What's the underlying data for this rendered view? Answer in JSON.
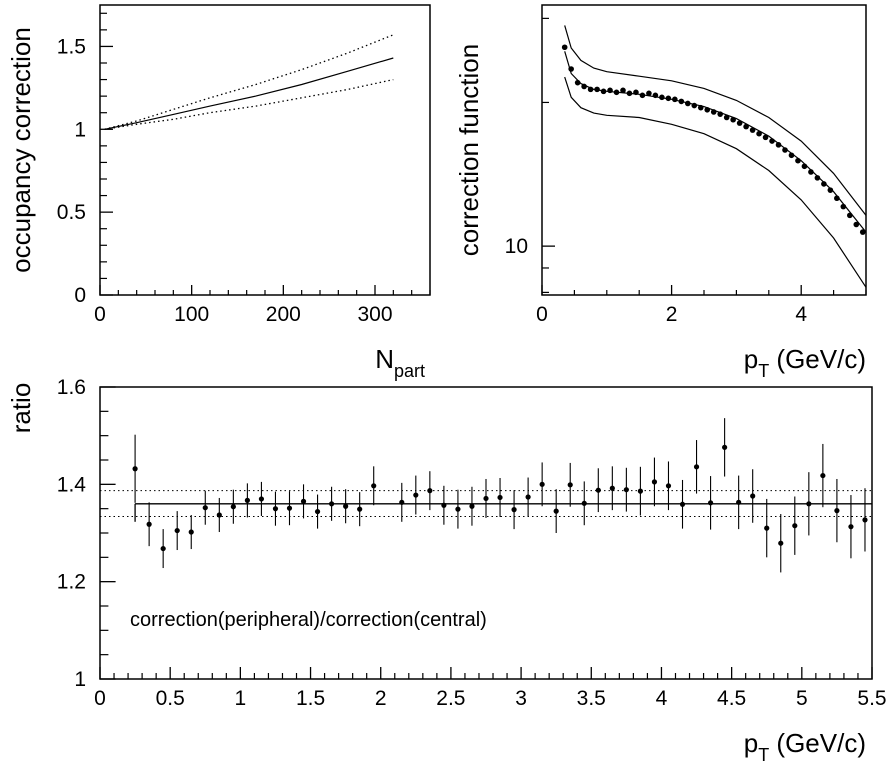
{
  "chart_data": [
    {
      "type": "line",
      "ylabel": "occupancy correction",
      "xlabel": "N",
      "xlabel_sub": "part",
      "xlim": [
        0,
        360
      ],
      "ylim": [
        0,
        1.75
      ],
      "xticks": [
        0,
        100,
        200,
        300
      ],
      "xtick_labels": [
        "0",
        "100",
        "200",
        "300"
      ],
      "yticks": [
        0,
        0.5,
        1,
        1.5
      ],
      "ytick_labels": [
        "0",
        "0.5",
        "1",
        "1.5"
      ],
      "series": [
        {
          "style": "solid",
          "x": [
            5,
            40,
            80,
            120,
            170,
            220,
            270,
            320
          ],
          "y": [
            1.0,
            1.04,
            1.09,
            1.14,
            1.2,
            1.27,
            1.35,
            1.43
          ]
        },
        {
          "style": "dotted",
          "x": [
            5,
            40,
            80,
            120,
            170,
            220,
            270,
            320
          ],
          "y": [
            1.0,
            1.05,
            1.12,
            1.19,
            1.27,
            1.36,
            1.46,
            1.57
          ]
        },
        {
          "style": "dotted",
          "x": [
            5,
            40,
            80,
            120,
            170,
            220,
            270,
            320
          ],
          "y": [
            1.0,
            1.03,
            1.06,
            1.1,
            1.14,
            1.19,
            1.24,
            1.3
          ]
        }
      ]
    },
    {
      "type": "scatter",
      "ylabel": "correction function",
      "xlabel": "p",
      "xlabel_sub": "T",
      "xlabel_suffix": " (GeV/c)",
      "y_scale": "log",
      "xlim": [
        0,
        5
      ],
      "ylim": [
        7.9,
        32
      ],
      "xticks": [
        0,
        2,
        4
      ],
      "xtick_labels": [
        "0",
        "2",
        "4"
      ],
      "yticks": [
        10
      ],
      "ytick_labels": [
        "10"
      ],
      "points": {
        "x": [
          0.35,
          0.45,
          0.55,
          0.65,
          0.75,
          0.85,
          0.95,
          1.05,
          1.15,
          1.25,
          1.35,
          1.45,
          1.55,
          1.65,
          1.75,
          1.85,
          1.95,
          2.05,
          2.15,
          2.25,
          2.35,
          2.45,
          2.55,
          2.65,
          2.75,
          2.85,
          2.95,
          3.05,
          3.15,
          3.25,
          3.35,
          3.45,
          3.55,
          3.65,
          3.75,
          3.85,
          3.95,
          4.05,
          4.15,
          4.25,
          4.35,
          4.45,
          4.55,
          4.65,
          4.75,
          4.85,
          4.95
        ],
        "y": [
          26.1,
          23.5,
          22.0,
          21.6,
          21.3,
          21.3,
          21.1,
          21.2,
          21.0,
          21.2,
          20.9,
          21.0,
          20.7,
          20.9,
          20.7,
          20.5,
          20.4,
          20.3,
          20.1,
          19.9,
          19.7,
          19.5,
          19.3,
          19.1,
          18.9,
          18.6,
          18.4,
          18.1,
          17.8,
          17.5,
          17.2,
          16.9,
          16.6,
          16.3,
          15.9,
          15.5,
          15.1,
          14.7,
          14.3,
          13.9,
          13.5,
          13.1,
          12.6,
          12.1,
          11.6,
          11.1,
          10.7
        ]
      },
      "series": [
        {
          "style": "solid",
          "x": [
            0.35,
            0.45,
            0.6,
            0.8,
            1.0,
            1.5,
            2.0,
            2.5,
            3.0,
            3.5,
            4.0,
            4.5,
            5.0
          ],
          "y": [
            25.6,
            23.0,
            21.9,
            21.3,
            21.1,
            20.8,
            20.3,
            19.6,
            18.5,
            17.0,
            15.1,
            13.0,
            10.7
          ]
        },
        {
          "style": "solid",
          "x": [
            0.35,
            0.45,
            0.6,
            0.8,
            1.0,
            1.5,
            2.0,
            2.5,
            3.0,
            3.5,
            4.0,
            4.5,
            5.0
          ],
          "y": [
            29.0,
            26.0,
            24.5,
            23.6,
            23.2,
            22.7,
            22.2,
            21.4,
            20.2,
            18.6,
            16.6,
            14.2,
            11.6
          ]
        },
        {
          "style": "solid",
          "x": [
            0.35,
            0.45,
            0.6,
            0.8,
            1.0,
            1.5,
            2.0,
            2.5,
            3.0,
            3.5,
            4.0,
            4.5,
            5.0
          ],
          "y": [
            22.6,
            20.5,
            19.5,
            19.0,
            18.8,
            18.6,
            18.0,
            17.2,
            16.0,
            14.4,
            12.5,
            10.4,
            8.2
          ]
        }
      ]
    },
    {
      "type": "scatter",
      "ylabel": "ratio",
      "xlabel": "p",
      "xlabel_sub": "T",
      "xlabel_suffix": " (GeV/c)",
      "annotation": "correction(peripheral)/correction(central)",
      "xlim": [
        0,
        5.5
      ],
      "ylim": [
        1,
        1.6
      ],
      "xticks": [
        0,
        0.5,
        1,
        1.5,
        2,
        2.5,
        3,
        3.5,
        4,
        4.5,
        5,
        5.5
      ],
      "xtick_labels": [
        "0",
        "0.5",
        "1",
        "1.5",
        "2",
        "2.5",
        "3",
        "3.5",
        "4",
        "4.5",
        "5",
        "5.5"
      ],
      "yticks": [
        1,
        1.2,
        1.4,
        1.6
      ],
      "ytick_labels": [
        "1",
        "1.2",
        "1.4",
        "1.6"
      ],
      "points": {
        "x": [
          0.25,
          0.35,
          0.45,
          0.55,
          0.65,
          0.75,
          0.85,
          0.95,
          1.05,
          1.15,
          1.25,
          1.35,
          1.45,
          1.55,
          1.65,
          1.75,
          1.85,
          1.95,
          2.15,
          2.25,
          2.35,
          2.45,
          2.55,
          2.65,
          2.75,
          2.85,
          2.95,
          3.05,
          3.15,
          3.25,
          3.35,
          3.45,
          3.55,
          3.65,
          3.75,
          3.85,
          3.95,
          4.05,
          4.15,
          4.25,
          4.35,
          4.45,
          4.55,
          4.65,
          4.75,
          4.85,
          4.95,
          5.05,
          5.15,
          5.25,
          5.35,
          5.45
        ],
        "y": [
          1.432,
          1.318,
          1.268,
          1.305,
          1.302,
          1.352,
          1.337,
          1.354,
          1.367,
          1.37,
          1.35,
          1.351,
          1.365,
          1.344,
          1.36,
          1.355,
          1.349,
          1.397,
          1.363,
          1.378,
          1.387,
          1.357,
          1.349,
          1.355,
          1.371,
          1.373,
          1.348,
          1.374,
          1.4,
          1.345,
          1.399,
          1.361,
          1.388,
          1.392,
          1.389,
          1.386,
          1.405,
          1.397,
          1.359,
          1.436,
          1.362,
          1.476,
          1.363,
          1.376,
          1.31,
          1.279,
          1.315,
          1.36,
          1.418,
          1.346,
          1.313,
          1.327
        ],
        "err": [
          0.07,
          0.045,
          0.04,
          0.04,
          0.035,
          0.035,
          0.035,
          0.035,
          0.035,
          0.035,
          0.035,
          0.035,
          0.035,
          0.035,
          0.035,
          0.035,
          0.035,
          0.04,
          0.04,
          0.04,
          0.04,
          0.04,
          0.04,
          0.04,
          0.04,
          0.04,
          0.04,
          0.04,
          0.045,
          0.045,
          0.045,
          0.045,
          0.045,
          0.045,
          0.045,
          0.05,
          0.05,
          0.05,
          0.05,
          0.055,
          0.055,
          0.06,
          0.055,
          0.055,
          0.06,
          0.06,
          0.06,
          0.065,
          0.065,
          0.065,
          0.065,
          0.065
        ]
      },
      "fit": {
        "x": [
          0.25,
          5.5
        ],
        "y": 1.36
      },
      "band": [
        1.334,
        1.387
      ]
    }
  ]
}
